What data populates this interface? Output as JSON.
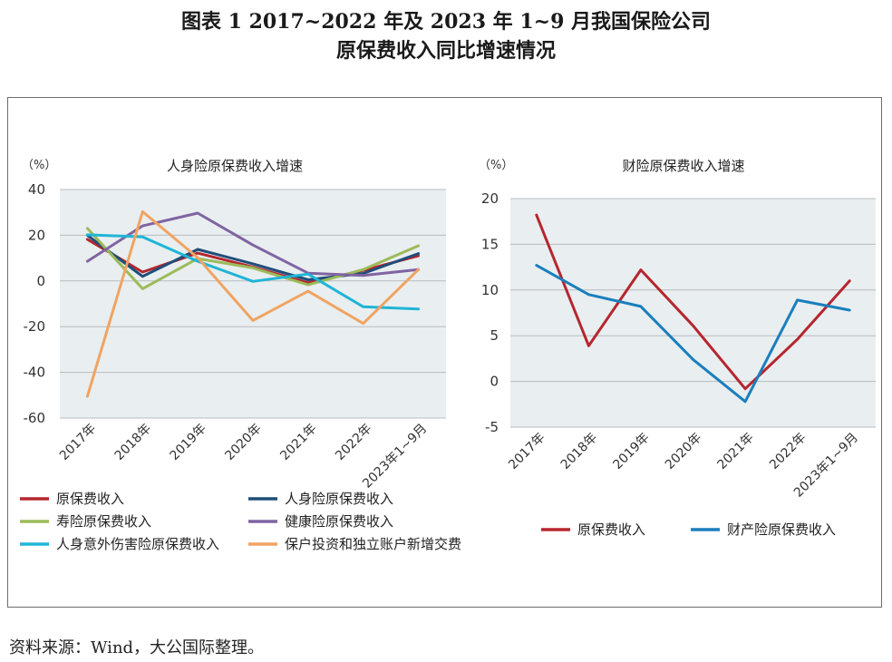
{
  "figure": {
    "title_line1": "图表 1  2017~2022 年及 2023 年 1~9 月我国保险公司",
    "title_line2": "原保费收入同比增速情况",
    "source": "资料来源：Wind，大公国际整理。"
  },
  "chart_data": [
    {
      "type": "line",
      "title": "人身险原保费收入增速",
      "ylabel": "（%）",
      "categories": [
        "2017年",
        "2018年",
        "2019年",
        "2020年",
        "2021年",
        "2022年",
        "2023年1~9月"
      ],
      "ylim": [
        -60,
        40
      ],
      "yticks": [
        40,
        20,
        0,
        -20,
        -40,
        -60
      ],
      "grid": true,
      "legend_position": "bottom",
      "series": [
        {
          "name": "原保费收入",
          "color": "#b5262e",
          "values": [
            18.2,
            3.9,
            12.2,
            6.1,
            -0.8,
            4.6,
            11.0
          ]
        },
        {
          "name": "人身险原保费收入",
          "color": "#1f4e79",
          "values": [
            20.0,
            2.0,
            13.8,
            7.5,
            0.5,
            3.3,
            12.0
          ]
        },
        {
          "name": "寿险原保费收入",
          "color": "#9bbb59",
          "values": [
            23.0,
            -3.4,
            9.8,
            5.7,
            -1.7,
            5.0,
            15.4
          ]
        },
        {
          "name": "健康险原保费收入",
          "color": "#8064a2",
          "values": [
            8.6,
            24.1,
            29.7,
            15.7,
            3.4,
            2.4,
            5.0
          ]
        },
        {
          "name": "人身意外伤害险原保费收入",
          "color": "#1fb5d6",
          "values": [
            20.2,
            19.3,
            8.6,
            -0.2,
            3.0,
            -11.3,
            -12.3
          ]
        },
        {
          "name": "保户投资和独立账户新增交费",
          "color": "#f0a462",
          "values": [
            -50.5,
            30.3,
            10.2,
            -17.3,
            -4.5,
            -18.6,
            5.0
          ]
        }
      ]
    },
    {
      "type": "line",
      "title": "财险原保费收入增速",
      "ylabel": "（%）",
      "categories": [
        "2017年",
        "2018年",
        "2019年",
        "2020年",
        "2021年",
        "2022年",
        "2023年1~9月"
      ],
      "ylim": [
        -5,
        20
      ],
      "yticks": [
        20,
        15,
        10,
        5,
        0,
        -5
      ],
      "grid": true,
      "legend_position": "bottom",
      "series": [
        {
          "name": "原保费收入",
          "color": "#b5262e",
          "values": [
            18.2,
            3.9,
            12.2,
            6.1,
            -0.8,
            4.6,
            11.0
          ]
        },
        {
          "name": "财产险原保费收入",
          "color": "#1a7fbc",
          "values": [
            12.7,
            9.5,
            8.2,
            2.4,
            -2.2,
            8.9,
            7.8
          ]
        }
      ]
    }
  ]
}
